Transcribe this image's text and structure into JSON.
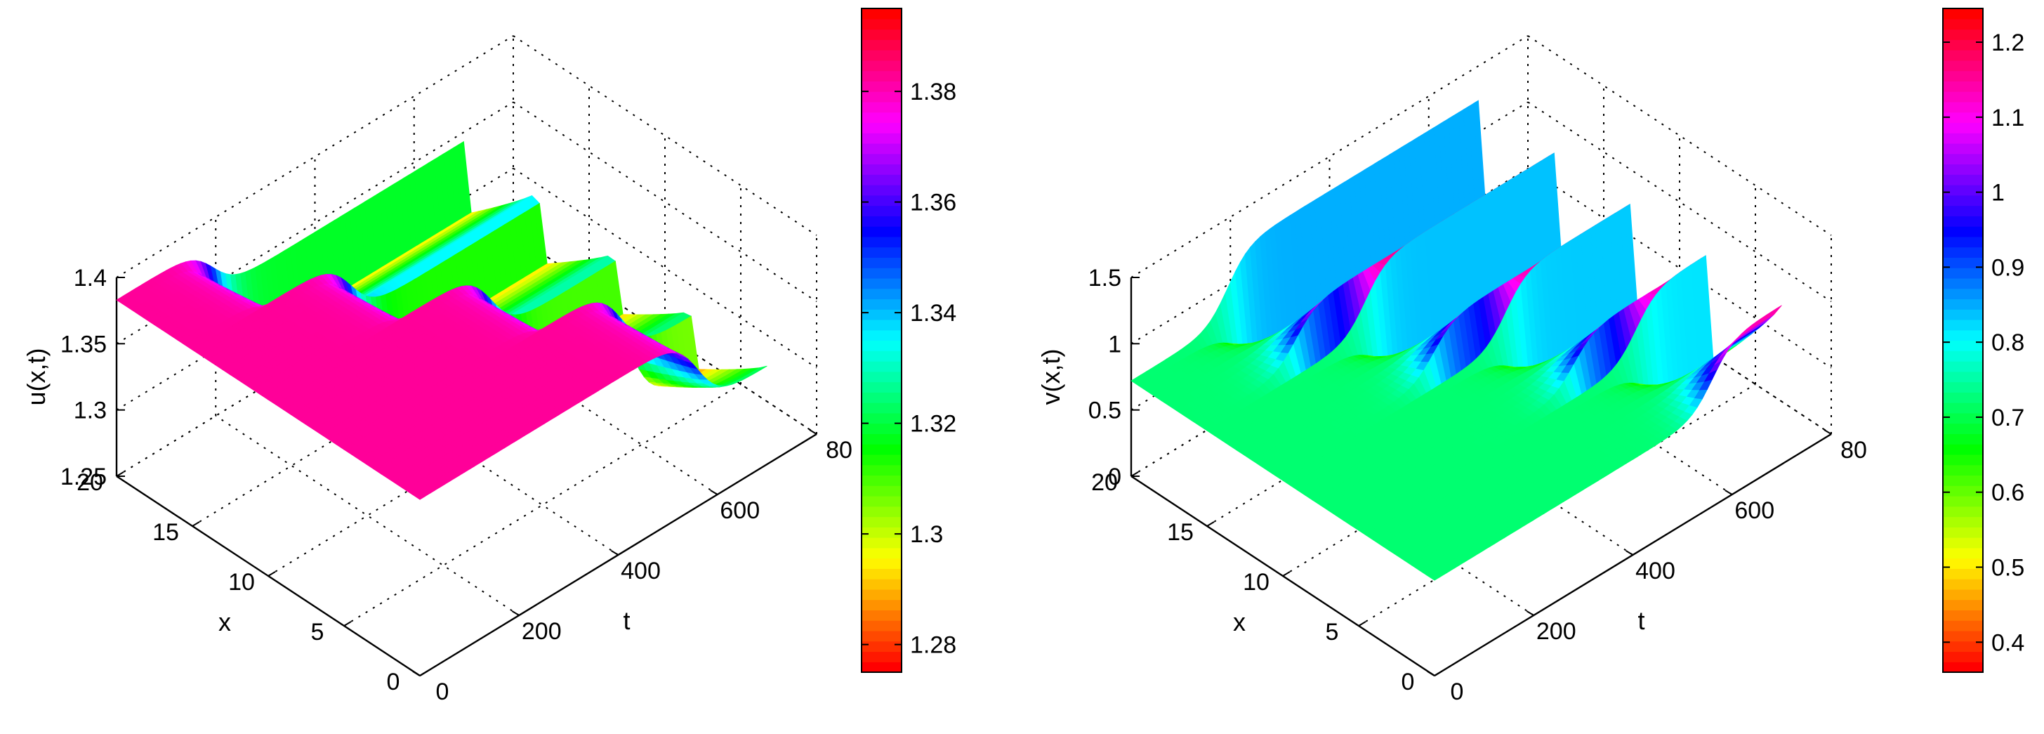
{
  "figure": {
    "description_free": true
  },
  "chart_data": [
    {
      "type": "surface",
      "name": "u",
      "zlabel": "u(x,t)",
      "xlabel": "x",
      "tlabel": "t",
      "x_ticks": [
        "0",
        "5",
        "10",
        "15",
        "20"
      ],
      "t_ticks": [
        "0",
        "200",
        "400",
        "600",
        "80"
      ],
      "z_ticks": [
        "1.25",
        "1.3",
        "1.35",
        "1.4"
      ],
      "x_range": [
        0,
        20
      ],
      "t_range": [
        0,
        800
      ],
      "z_range": [
        1.25,
        1.4
      ],
      "grid": true,
      "colorbar": {
        "range": [
          1.275,
          1.395
        ],
        "ticks": [
          "1.28",
          "1.3",
          "1.32",
          "1.34",
          "1.36",
          "1.38"
        ],
        "tick_values": [
          1.28,
          1.3,
          1.32,
          1.34,
          1.36,
          1.38
        ]
      },
      "surface_profile": {
        "initial_value": 1.383,
        "transition_t": [
          195,
          320,
          450,
          560
        ],
        "final_levels_high_x": [
          1.343,
          1.334,
          1.328,
          1.324
        ],
        "final_levels_low_x": [
          1.288,
          1.288,
          1.288,
          1.284
        ],
        "end_t": 700
      }
    },
    {
      "type": "surface",
      "name": "v",
      "zlabel": "v(x,t)",
      "xlabel": "x",
      "tlabel": "t",
      "x_ticks": [
        "0",
        "5",
        "10",
        "15",
        "20"
      ],
      "t_ticks": [
        "0",
        "200",
        "400",
        "600",
        "80"
      ],
      "z_ticks": [
        "0",
        "0.5",
        "1",
        "1.5"
      ],
      "x_range": [
        0,
        20
      ],
      "t_range": [
        0,
        800
      ],
      "z_range": [
        0,
        1.5
      ],
      "grid": true,
      "colorbar": {
        "range": [
          0.36,
          1.245
        ],
        "ticks": [
          "0.4",
          "0.5",
          "0.6",
          "0.7",
          "0.8",
          "0.9",
          "1",
          "1.1",
          "1.2"
        ],
        "tick_values": [
          0.4,
          0.5,
          0.6,
          0.7,
          0.8,
          0.9,
          1.0,
          1.1,
          1.2
        ]
      },
      "surface_profile": {
        "initial_value": 0.72,
        "transition_t": [
          195,
          320,
          450,
          560
        ],
        "final_levels_high_x": [
          1.24,
          1.22,
          1.21,
          1.2
        ],
        "final_levels_low_x": [
          0.38,
          0.38,
          0.38,
          0.36
        ],
        "end_t": 700
      }
    }
  ]
}
